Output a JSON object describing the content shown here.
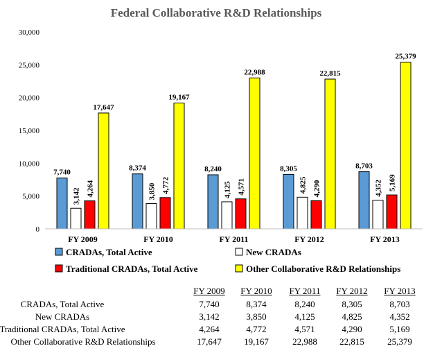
{
  "chart_data": {
    "type": "bar",
    "title": "Federal Collaborative R&D Relationships",
    "categories": [
      "FY 2009",
      "FY 2010",
      "FY 2011",
      "FY 2012",
      "FY 2013"
    ],
    "ylim": [
      0,
      30000
    ],
    "yticks": [
      "0",
      "5,000",
      "10,000",
      "15,000",
      "20,000",
      "25,000",
      "30,000"
    ],
    "ytick_values": [
      0,
      5000,
      10000,
      15000,
      20000,
      25000,
      30000
    ],
    "grid": false,
    "legend_position": "bottom",
    "series": [
      {
        "name": "CRADAs, Total Active",
        "color": "#5b9bd5",
        "values": [
          7740,
          8374,
          8240,
          8305,
          8703
        ],
        "labels": [
          "7,740",
          "8,374",
          "8,240",
          "8,305",
          "8,703"
        ]
      },
      {
        "name": "New CRADAs",
        "color": "#ffffff",
        "values": [
          3142,
          3850,
          4125,
          4825,
          4352
        ],
        "labels": [
          "3,142",
          "3,850",
          "4,125",
          "4,825",
          "4,352"
        ]
      },
      {
        "name": "Traditional CRADAs, Total Active",
        "color": "#ff0000",
        "values": [
          4264,
          4772,
          4571,
          4290,
          5169
        ],
        "labels": [
          "4,264",
          "4,772",
          "4,571",
          "4,290",
          "5,169"
        ]
      },
      {
        "name": "Other Collaborative R&D Relationships",
        "color": "#ffff00",
        "values": [
          17647,
          19167,
          22988,
          22815,
          25379
        ],
        "labels": [
          "17,647",
          "19,167",
          "22,988",
          "22,815",
          "25,379"
        ]
      }
    ]
  },
  "table": {
    "headers": [
      "FY 2009",
      "FY 2010",
      "FY 2011",
      "FY 2012",
      "FY 2013"
    ],
    "rows": [
      {
        "label": "CRADAs, Total Active",
        "cells": [
          "7,740",
          "8,374",
          "8,240",
          "8,305",
          "8,703"
        ]
      },
      {
        "label": "New CRADAs",
        "cells": [
          "3,142",
          "3,850",
          "4,125",
          "4,825",
          "4,352"
        ]
      },
      {
        "label": "Traditional CRADAs, Total Active",
        "cells": [
          "4,264",
          "4,772",
          "4,571",
          "4,290",
          "5,169"
        ]
      },
      {
        "label": "Other Collaborative R&D Relationships",
        "cells": [
          "17,647",
          "19,167",
          "22,988",
          "22,815",
          "25,379"
        ]
      }
    ]
  }
}
